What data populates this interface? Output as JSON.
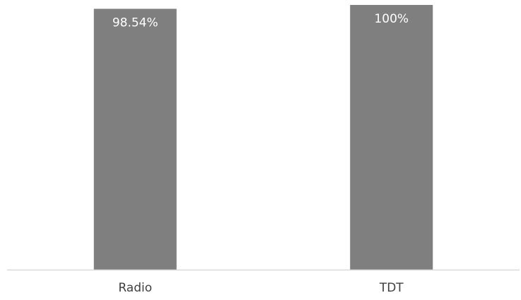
{
  "chart_data": {
    "type": "bar",
    "categories": [
      "Radio",
      "TDT"
    ],
    "values": [
      98.54,
      100
    ],
    "data_labels": [
      "98.54%",
      "100%"
    ],
    "title": "",
    "xlabel": "",
    "ylabel": "",
    "ylim": [
      0,
      100
    ],
    "grid": false,
    "legend": "none",
    "colors": {
      "bar": "#7f7f7f",
      "axis": "#d9d9d9",
      "data_label": "#ffffff",
      "tick_label": "#404040"
    }
  }
}
